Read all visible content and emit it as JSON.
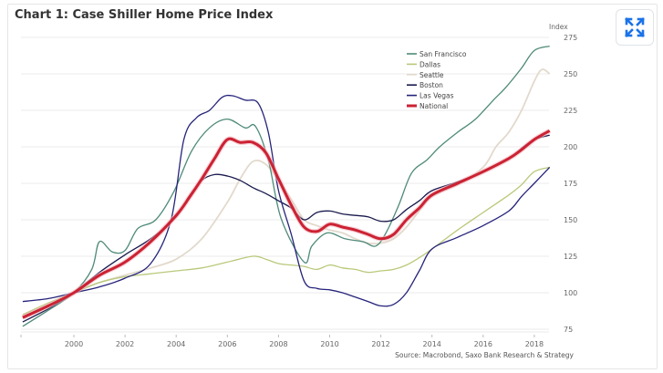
{
  "header": {
    "title": "Chart 1: Case Shiller Home Price Index",
    "expand_icon": "expand-arrows-icon"
  },
  "colors": {
    "accent": "#1a73e8",
    "San Francisco": "#4e8a79",
    "Dallas": "#b9c97a",
    "Seattle": "#e2d9cc",
    "Boston": "#1a1a4e",
    "Las Vegas": "#25237a",
    "National": "#cc2233"
  },
  "chart_data": {
    "type": "line",
    "title": "Chart 1: Case Shiller Home Price Index",
    "xlabel": "",
    "ylabel": "Index",
    "xlim": [
      1998.0,
      2018.6
    ],
    "ylim": [
      75,
      275
    ],
    "x_ticks": [
      "2000",
      "2002",
      "2004",
      "2006",
      "2008",
      "2010",
      "2012",
      "2014",
      "2016",
      "2018"
    ],
    "y_ticks": [
      "75",
      "100",
      "125",
      "150",
      "175",
      "200",
      "225",
      "250",
      "275"
    ],
    "y_axis_side": "right",
    "grid": "horizontal",
    "legend_position": "top-right",
    "source": "Source: Macrobond, Saxo Bank Research & Strategy",
    "series": [
      {
        "name": "San Francisco",
        "x": [
          1998.0,
          1999.0,
          2000.0,
          2000.7,
          2001.0,
          2001.5,
          2002.0,
          2002.5,
          2003.2,
          2003.9,
          2004.6,
          2005.3,
          2006.0,
          2006.7,
          2007.1,
          2007.6,
          2008.1,
          2009.0,
          2009.3,
          2009.9,
          2010.6,
          2011.3,
          2011.8,
          2012.2,
          2012.7,
          2013.2,
          2013.8,
          2014.3,
          2015.0,
          2015.7,
          2016.4,
          2016.9,
          2017.5,
          2018.0,
          2018.6
        ],
        "values": [
          77,
          88,
          100,
          116,
          135,
          128,
          129,
          144,
          150,
          169,
          197,
          213,
          219,
          213,
          214,
          191,
          151,
          121,
          132,
          141,
          137,
          135,
          132,
          141,
          160,
          182,
          191,
          200,
          210,
          219,
          232,
          241,
          254,
          266,
          269
        ]
      },
      {
        "name": "Dallas",
        "x": [
          1998.0,
          1999.0,
          2000.0,
          2001.0,
          2002.0,
          2003.0,
          2004.0,
          2005.0,
          2006.0,
          2007.0,
          2007.5,
          2008.0,
          2008.5,
          2009.0,
          2009.5,
          2010.0,
          2010.5,
          2011.0,
          2011.5,
          2012.0,
          2012.5,
          2013.0,
          2013.5,
          2014.0,
          2015.0,
          2016.0,
          2017.0,
          2017.5,
          2018.0,
          2018.6
        ],
        "values": [
          85,
          93,
          100,
          107,
          111,
          113,
          115,
          117,
          121,
          125,
          123,
          120,
          119,
          118,
          116,
          119,
          117,
          116,
          114,
          115,
          116,
          119,
          124,
          130,
          143,
          155,
          167,
          174,
          183,
          186
        ]
      },
      {
        "name": "Seattle",
        "x": [
          1998.0,
          1999.0,
          2000.0,
          2001.0,
          2002.0,
          2003.0,
          2004.0,
          2005.0,
          2006.0,
          2006.5,
          2007.0,
          2007.5,
          2008.0,
          2008.5,
          2009.0,
          2009.5,
          2010.0,
          2010.5,
          2011.0,
          2011.5,
          2012.0,
          2012.5,
          2013.0,
          2013.5,
          2014.0,
          2015.0,
          2016.0,
          2016.5,
          2017.0,
          2017.5,
          2018.0,
          2018.3,
          2018.6
        ],
        "values": [
          84,
          92,
          100,
          107,
          112,
          117,
          123,
          137,
          162,
          178,
          190,
          188,
          177,
          164,
          150,
          146,
          143,
          141,
          137,
          134,
          134,
          137,
          145,
          156,
          166,
          174,
          186,
          200,
          210,
          225,
          245,
          253,
          250
        ]
      },
      {
        "name": "Boston",
        "x": [
          1998.0,
          1999.0,
          2000.0,
          2001.0,
          2002.0,
          2003.0,
          2004.0,
          2004.5,
          2005.0,
          2005.5,
          2006.0,
          2006.5,
          2007.0,
          2007.5,
          2008.0,
          2008.5,
          2009.0,
          2009.5,
          2010.0,
          2010.5,
          2011.0,
          2011.5,
          2012.0,
          2012.5,
          2013.0,
          2013.5,
          2014.0,
          2015.0,
          2016.0,
          2017.0,
          2017.5,
          2018.0,
          2018.6
        ],
        "values": [
          80,
          89,
          100,
          114,
          126,
          137,
          152,
          166,
          177,
          181,
          180,
          177,
          172,
          168,
          163,
          158,
          150,
          155,
          156,
          154,
          153,
          152,
          149,
          150,
          157,
          163,
          170,
          176,
          183,
          192,
          199,
          205,
          208
        ]
      },
      {
        "name": "Las Vegas",
        "x": [
          1998.0,
          1999.0,
          2000.0,
          2001.0,
          2002.0,
          2003.0,
          2003.8,
          2004.3,
          2004.8,
          2005.3,
          2005.8,
          2006.2,
          2006.7,
          2007.2,
          2007.6,
          2008.0,
          2008.5,
          2009.0,
          2009.5,
          2010.0,
          2010.5,
          2011.0,
          2011.5,
          2012.0,
          2012.5,
          2013.0,
          2013.5,
          2014.0,
          2015.0,
          2016.0,
          2017.0,
          2017.5,
          2018.0,
          2018.6
        ],
        "values": [
          94,
          96,
          100,
          104,
          110,
          120,
          150,
          205,
          220,
          225,
          234,
          235,
          232,
          230,
          210,
          170,
          140,
          108,
          103,
          102,
          100,
          97,
          94,
          91,
          92,
          100,
          115,
          130,
          138,
          146,
          156,
          166,
          175,
          186
        ]
      },
      {
        "name": "National",
        "x": [
          1998.0,
          1999.0,
          2000.0,
          2001.0,
          2002.0,
          2003.0,
          2004.0,
          2004.5,
          2005.0,
          2005.5,
          2006.0,
          2006.5,
          2007.0,
          2007.5,
          2008.0,
          2008.5,
          2009.0,
          2009.5,
          2010.0,
          2010.5,
          2011.0,
          2011.5,
          2012.0,
          2012.5,
          2013.0,
          2013.5,
          2014.0,
          2015.0,
          2016.0,
          2017.0,
          2017.5,
          2018.0,
          2018.6
        ],
        "values": [
          83,
          91,
          100,
          112,
          121,
          135,
          153,
          165,
          178,
          192,
          205,
          203,
          203,
          196,
          178,
          160,
          145,
          142,
          147,
          145,
          143,
          140,
          137,
          140,
          150,
          158,
          167,
          175,
          183,
          192,
          198,
          205,
          211
        ]
      }
    ]
  }
}
